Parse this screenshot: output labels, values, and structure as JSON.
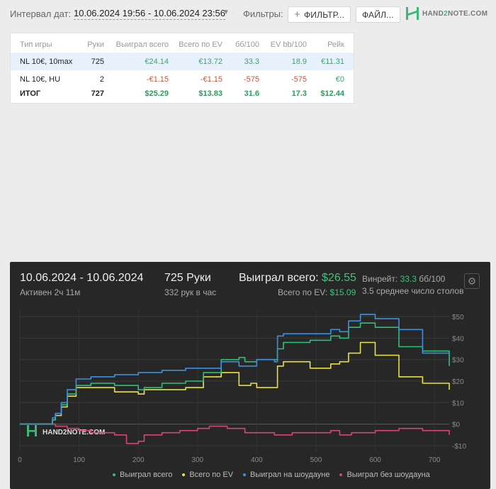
{
  "toolbar": {
    "interval_label": "Интервал дат:",
    "interval_value": "10.06.2024 19:56 - 10.06.2024 23:56",
    "filters_label": "Фильтры:",
    "filter_button": "ФИЛЬТР...",
    "file_button": "ФАЙЛ...",
    "logo_a": "HAND",
    "logo_b": "2",
    "logo_c": "NOTE.COM"
  },
  "table": {
    "headers": [
      "Тип игры",
      "Руки",
      "Выиграл всего",
      "Всего по EV",
      "бб/100",
      "EV bb/100",
      "Рейк"
    ],
    "rows": [
      [
        "NL 10€, 10max",
        "725",
        "€24.14",
        "€13.72",
        "33.3",
        "18.9",
        "€11.31"
      ],
      [
        "NL 10€, HU",
        "2",
        "-€1.15",
        "-€1.15",
        "-575",
        "-575",
        "€0"
      ],
      [
        "ИТОГ",
        "727",
        "$25.29",
        "$13.83",
        "31.6",
        "17.3",
        "$12.44"
      ]
    ]
  },
  "panel": {
    "date_range": "10.06.2024 - 10.06.2024",
    "active": "Активен 2ч 11м",
    "hands": "725 Руки",
    "per_hour": "332 рук в час",
    "won_label": "Выиграл всего: ",
    "won_value": "$26.55",
    "ev_label": "Всего по EV: ",
    "ev_value": "$15.09",
    "winrate_label": "Винрейт: ",
    "winrate_value": "33.3",
    "winrate_unit": " бб/100",
    "avg_players": "3.5 среднее число столов"
  },
  "colors": {
    "won": "#2fc07a",
    "ev": "#e8e048",
    "showdown": "#3f8fe0",
    "no_showdown": "#d9466d",
    "accent": "#3cb878"
  },
  "chart_data": {
    "type": "line",
    "xlim": [
      0,
      725
    ],
    "ylim": [
      -13,
      53
    ],
    "x_ticks": [
      0,
      100,
      200,
      300,
      400,
      500,
      600,
      700
    ],
    "y_ticks": [
      50,
      40,
      30,
      20,
      10,
      0,
      -10
    ],
    "y_tick_labels": [
      "$50",
      "$40",
      "$30",
      "$20",
      "$10",
      "$0",
      "-$10"
    ],
    "watermark": "HAND2NOTE.COM",
    "series": [
      {
        "name": "Выиграл всего",
        "color": "#2fc07a",
        "points": [
          [
            0,
            0
          ],
          [
            40,
            0
          ],
          [
            55,
            2
          ],
          [
            60,
            5
          ],
          [
            70,
            9
          ],
          [
            80,
            14
          ],
          [
            95,
            18
          ],
          [
            105,
            18
          ],
          [
            120,
            19
          ],
          [
            160,
            18
          ],
          [
            200,
            16
          ],
          [
            210,
            17
          ],
          [
            240,
            19
          ],
          [
            280,
            20
          ],
          [
            310,
            24
          ],
          [
            340,
            30
          ],
          [
            370,
            31
          ],
          [
            380,
            29
          ],
          [
            400,
            30
          ],
          [
            430,
            30
          ],
          [
            435,
            35
          ],
          [
            445,
            38
          ],
          [
            490,
            39
          ],
          [
            525,
            41
          ],
          [
            540,
            40
          ],
          [
            555,
            45
          ],
          [
            575,
            47
          ],
          [
            600,
            45
          ],
          [
            640,
            36
          ],
          [
            680,
            34
          ],
          [
            725,
            27
          ]
        ]
      },
      {
        "name": "Всего по EV",
        "color": "#e8e048",
        "points": [
          [
            0,
            0
          ],
          [
            40,
            0
          ],
          [
            55,
            2
          ],
          [
            60,
            4
          ],
          [
            70,
            8
          ],
          [
            80,
            13
          ],
          [
            95,
            17
          ],
          [
            105,
            17
          ],
          [
            130,
            17
          ],
          [
            160,
            15
          ],
          [
            200,
            14
          ],
          [
            210,
            16
          ],
          [
            240,
            16
          ],
          [
            280,
            17
          ],
          [
            310,
            22
          ],
          [
            340,
            24
          ],
          [
            370,
            18
          ],
          [
            390,
            19
          ],
          [
            400,
            17
          ],
          [
            430,
            17
          ],
          [
            435,
            27
          ],
          [
            445,
            29
          ],
          [
            490,
            26
          ],
          [
            525,
            28
          ],
          [
            540,
            29
          ],
          [
            555,
            33
          ],
          [
            575,
            38
          ],
          [
            600,
            32
          ],
          [
            640,
            22
          ],
          [
            680,
            19
          ],
          [
            725,
            16
          ]
        ]
      },
      {
        "name": "Выиграл на шоудауне",
        "color": "#3f8fe0",
        "points": [
          [
            0,
            0
          ],
          [
            40,
            0
          ],
          [
            55,
            3
          ],
          [
            60,
            5
          ],
          [
            70,
            10
          ],
          [
            80,
            16
          ],
          [
            95,
            21
          ],
          [
            105,
            21
          ],
          [
            120,
            22
          ],
          [
            160,
            23
          ],
          [
            200,
            24
          ],
          [
            240,
            25
          ],
          [
            280,
            26
          ],
          [
            310,
            26
          ],
          [
            340,
            29
          ],
          [
            370,
            27
          ],
          [
            400,
            30
          ],
          [
            430,
            29
          ],
          [
            435,
            41
          ],
          [
            445,
            42
          ],
          [
            490,
            42
          ],
          [
            525,
            44
          ],
          [
            540,
            43
          ],
          [
            555,
            48
          ],
          [
            575,
            51
          ],
          [
            600,
            49
          ],
          [
            640,
            44
          ],
          [
            680,
            33
          ],
          [
            725,
            32
          ]
        ]
      },
      {
        "name": "Выиграл без шоудауна",
        "color": "#d9466d",
        "points": [
          [
            0,
            0
          ],
          [
            40,
            0
          ],
          [
            60,
            -1
          ],
          [
            80,
            -2
          ],
          [
            100,
            -3
          ],
          [
            120,
            -4
          ],
          [
            160,
            -5
          ],
          [
            180,
            -9
          ],
          [
            200,
            -8
          ],
          [
            210,
            -5
          ],
          [
            240,
            -4
          ],
          [
            270,
            -3
          ],
          [
            300,
            -2
          ],
          [
            320,
            -1
          ],
          [
            350,
            -2
          ],
          [
            380,
            -4
          ],
          [
            400,
            -4
          ],
          [
            430,
            -5
          ],
          [
            460,
            -4
          ],
          [
            490,
            -4
          ],
          [
            525,
            -3
          ],
          [
            540,
            -5
          ],
          [
            560,
            -4
          ],
          [
            600,
            -3
          ],
          [
            640,
            -2
          ],
          [
            680,
            -3
          ],
          [
            725,
            -5
          ]
        ]
      }
    ]
  }
}
